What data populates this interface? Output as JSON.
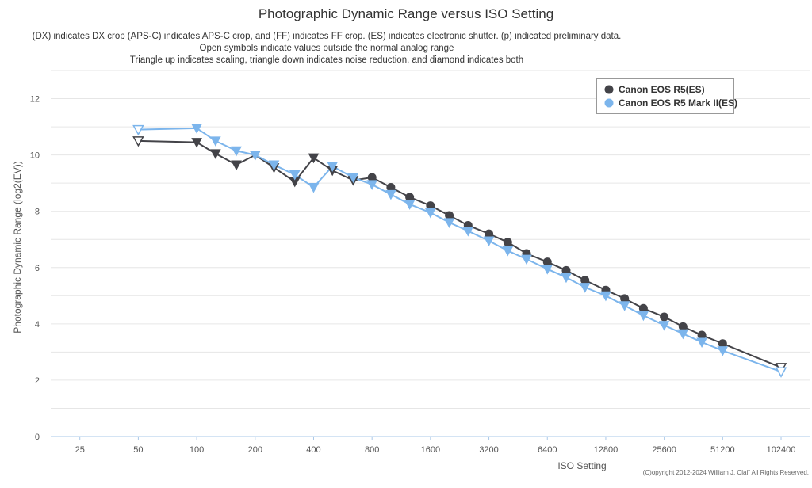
{
  "chart_data": {
    "type": "line",
    "title": "Photographic Dynamic Range versus ISO Setting",
    "subtitles": [
      "(DX) indicates DX crop (APS-C) indicates APS-C crop, and (FF) indicates FF crop. (ES) indicates electronic shutter. (p) indicated preliminary data.",
      "Open symbols indicate values outside the normal analog range",
      "Triangle up indicates scaling, triangle down indicates noise reduction, and diamond indicates both"
    ],
    "xlabel": "ISO Setting",
    "ylabel": "Photographic Dynamic Range (log2(EV))",
    "x_scale": "log2",
    "x_ticks": [
      25,
      50,
      100,
      200,
      400,
      800,
      1600,
      3200,
      6400,
      12800,
      25600,
      51200,
      102400
    ],
    "xlim": [
      17.7,
      145000
    ],
    "ylim": [
      0,
      13
    ],
    "y_ticks": [
      0,
      2,
      4,
      6,
      8,
      10,
      12
    ],
    "grid": true,
    "legend_position": "top-right",
    "series": [
      {
        "name": "Canon EOS R5(ES)",
        "color": "#434348",
        "points": [
          {
            "x": 50,
            "y": 10.5,
            "marker": "triangle-down-open"
          },
          {
            "x": 100,
            "y": 10.45,
            "marker": "triangle-down"
          },
          {
            "x": 125,
            "y": 10.05,
            "marker": "triangle-down"
          },
          {
            "x": 160,
            "y": 9.65,
            "marker": "triangle-down"
          },
          {
            "x": 200,
            "y": 10.0,
            "marker": "triangle-down"
          },
          {
            "x": 250,
            "y": 9.55,
            "marker": "triangle-down"
          },
          {
            "x": 320,
            "y": 9.05,
            "marker": "triangle-down"
          },
          {
            "x": 400,
            "y": 9.9,
            "marker": "triangle-down"
          },
          {
            "x": 500,
            "y": 9.45,
            "marker": "triangle-down"
          },
          {
            "x": 640,
            "y": 9.1,
            "marker": "triangle-down"
          },
          {
            "x": 800,
            "y": 9.2,
            "marker": "circle"
          },
          {
            "x": 1000,
            "y": 8.85,
            "marker": "circle"
          },
          {
            "x": 1250,
            "y": 8.5,
            "marker": "circle"
          },
          {
            "x": 1600,
            "y": 8.2,
            "marker": "circle"
          },
          {
            "x": 2000,
            "y": 7.85,
            "marker": "circle"
          },
          {
            "x": 2500,
            "y": 7.5,
            "marker": "circle"
          },
          {
            "x": 3200,
            "y": 7.2,
            "marker": "circle"
          },
          {
            "x": 4000,
            "y": 6.9,
            "marker": "circle"
          },
          {
            "x": 5000,
            "y": 6.5,
            "marker": "circle"
          },
          {
            "x": 6400,
            "y": 6.2,
            "marker": "circle"
          },
          {
            "x": 8000,
            "y": 5.9,
            "marker": "circle"
          },
          {
            "x": 10000,
            "y": 5.55,
            "marker": "circle"
          },
          {
            "x": 12800,
            "y": 5.2,
            "marker": "circle"
          },
          {
            "x": 16000,
            "y": 4.9,
            "marker": "circle"
          },
          {
            "x": 20000,
            "y": 4.55,
            "marker": "circle"
          },
          {
            "x": 25600,
            "y": 4.25,
            "marker": "circle"
          },
          {
            "x": 32000,
            "y": 3.9,
            "marker": "circle"
          },
          {
            "x": 40000,
            "y": 3.6,
            "marker": "circle"
          },
          {
            "x": 51200,
            "y": 3.3,
            "marker": "circle"
          },
          {
            "x": 102400,
            "y": 2.45,
            "marker": "triangle-down-open"
          }
        ]
      },
      {
        "name": "Canon EOS R5 Mark II(ES)",
        "color": "#7cb5ec",
        "points": [
          {
            "x": 50,
            "y": 10.9,
            "marker": "triangle-down-open"
          },
          {
            "x": 100,
            "y": 10.95,
            "marker": "triangle-down"
          },
          {
            "x": 125,
            "y": 10.5,
            "marker": "triangle-down"
          },
          {
            "x": 160,
            "y": 10.15,
            "marker": "triangle-down"
          },
          {
            "x": 200,
            "y": 10.0,
            "marker": "triangle-down"
          },
          {
            "x": 250,
            "y": 9.65,
            "marker": "triangle-down"
          },
          {
            "x": 320,
            "y": 9.3,
            "marker": "triangle-down"
          },
          {
            "x": 400,
            "y": 8.85,
            "marker": "triangle-down"
          },
          {
            "x": 500,
            "y": 9.6,
            "marker": "triangle-down"
          },
          {
            "x": 640,
            "y": 9.2,
            "marker": "triangle-down"
          },
          {
            "x": 800,
            "y": 8.95,
            "marker": "triangle-down"
          },
          {
            "x": 1000,
            "y": 8.6,
            "marker": "triangle-down"
          },
          {
            "x": 1250,
            "y": 8.25,
            "marker": "triangle-down"
          },
          {
            "x": 1600,
            "y": 7.95,
            "marker": "triangle-down"
          },
          {
            "x": 2000,
            "y": 7.6,
            "marker": "triangle-down"
          },
          {
            "x": 2500,
            "y": 7.3,
            "marker": "triangle-down"
          },
          {
            "x": 3200,
            "y": 6.95,
            "marker": "triangle-down"
          },
          {
            "x": 4000,
            "y": 6.6,
            "marker": "triangle-down"
          },
          {
            "x": 5000,
            "y": 6.3,
            "marker": "triangle-down"
          },
          {
            "x": 6400,
            "y": 5.95,
            "marker": "triangle-down"
          },
          {
            "x": 8000,
            "y": 5.65,
            "marker": "triangle-down"
          },
          {
            "x": 10000,
            "y": 5.3,
            "marker": "triangle-down"
          },
          {
            "x": 12800,
            "y": 5.0,
            "marker": "triangle-down"
          },
          {
            "x": 16000,
            "y": 4.65,
            "marker": "triangle-down"
          },
          {
            "x": 20000,
            "y": 4.3,
            "marker": "triangle-down"
          },
          {
            "x": 25600,
            "y": 3.95,
            "marker": "triangle-down"
          },
          {
            "x": 32000,
            "y": 3.65,
            "marker": "triangle-down"
          },
          {
            "x": 40000,
            "y": 3.35,
            "marker": "triangle-down"
          },
          {
            "x": 51200,
            "y": 3.05,
            "marker": "triangle-down"
          },
          {
            "x": 102400,
            "y": 2.3,
            "marker": "triangle-down-open"
          }
        ]
      }
    ],
    "copyright": "(C)opyright 2012-2024 William J. Claff All Rights Reserved."
  }
}
